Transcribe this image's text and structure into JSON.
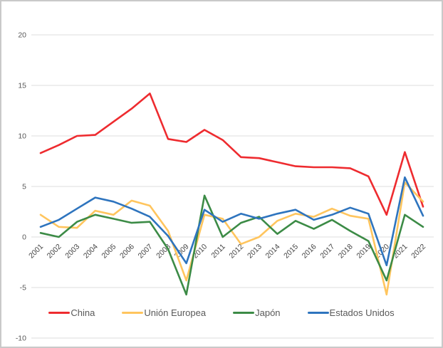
{
  "chart_data": {
    "type": "line",
    "title": "",
    "xlabel": "",
    "ylabel": "",
    "x": [
      "2001",
      "2002",
      "2003",
      "2004",
      "2005",
      "2006",
      "2007",
      "2008",
      "2009",
      "2010",
      "2011",
      "2012",
      "2013",
      "2014",
      "2015",
      "2016",
      "2017",
      "2018",
      "2019",
      "2020",
      "2021",
      "2022"
    ],
    "series": [
      {
        "name": "China",
        "color": "#EE2B2F",
        "values": [
          8.3,
          9.1,
          10.0,
          10.1,
          11.4,
          12.7,
          14.2,
          9.7,
          9.4,
          10.6,
          9.6,
          7.9,
          7.8,
          7.4,
          7.0,
          6.9,
          6.9,
          6.8,
          6.0,
          2.2,
          8.4,
          3.0
        ]
      },
      {
        "name": "Unión Europea",
        "color": "#FFC55E",
        "values": [
          2.2,
          1.0,
          0.9,
          2.6,
          2.2,
          3.6,
          3.1,
          0.6,
          -4.3,
          2.2,
          1.8,
          -0.7,
          0.0,
          1.6,
          2.3,
          2.0,
          2.8,
          2.1,
          1.8,
          -5.7,
          5.4,
          3.5
        ]
      },
      {
        "name": "Japón",
        "color": "#3C8B46",
        "values": [
          0.4,
          0.0,
          1.5,
          2.2,
          1.8,
          1.4,
          1.5,
          -1.2,
          -5.7,
          4.1,
          0.0,
          1.4,
          2.0,
          0.3,
          1.6,
          0.8,
          1.7,
          0.6,
          -0.4,
          -4.3,
          2.2,
          1.0
        ]
      },
      {
        "name": "Estados Unidos",
        "color": "#2E74BE",
        "values": [
          1.0,
          1.7,
          2.8,
          3.9,
          3.5,
          2.8,
          2.0,
          0.1,
          -2.6,
          2.7,
          1.5,
          2.3,
          1.8,
          2.3,
          2.7,
          1.7,
          2.2,
          2.9,
          2.3,
          -2.8,
          5.9,
          2.1
        ]
      }
    ],
    "yticks": [
      20,
      15,
      10,
      5,
      0,
      -5,
      -10
    ],
    "ylim": [
      -10,
      20
    ],
    "grid": "horizontal",
    "gridline_color": "#DCDCDC",
    "legend_position": "bottom"
  }
}
